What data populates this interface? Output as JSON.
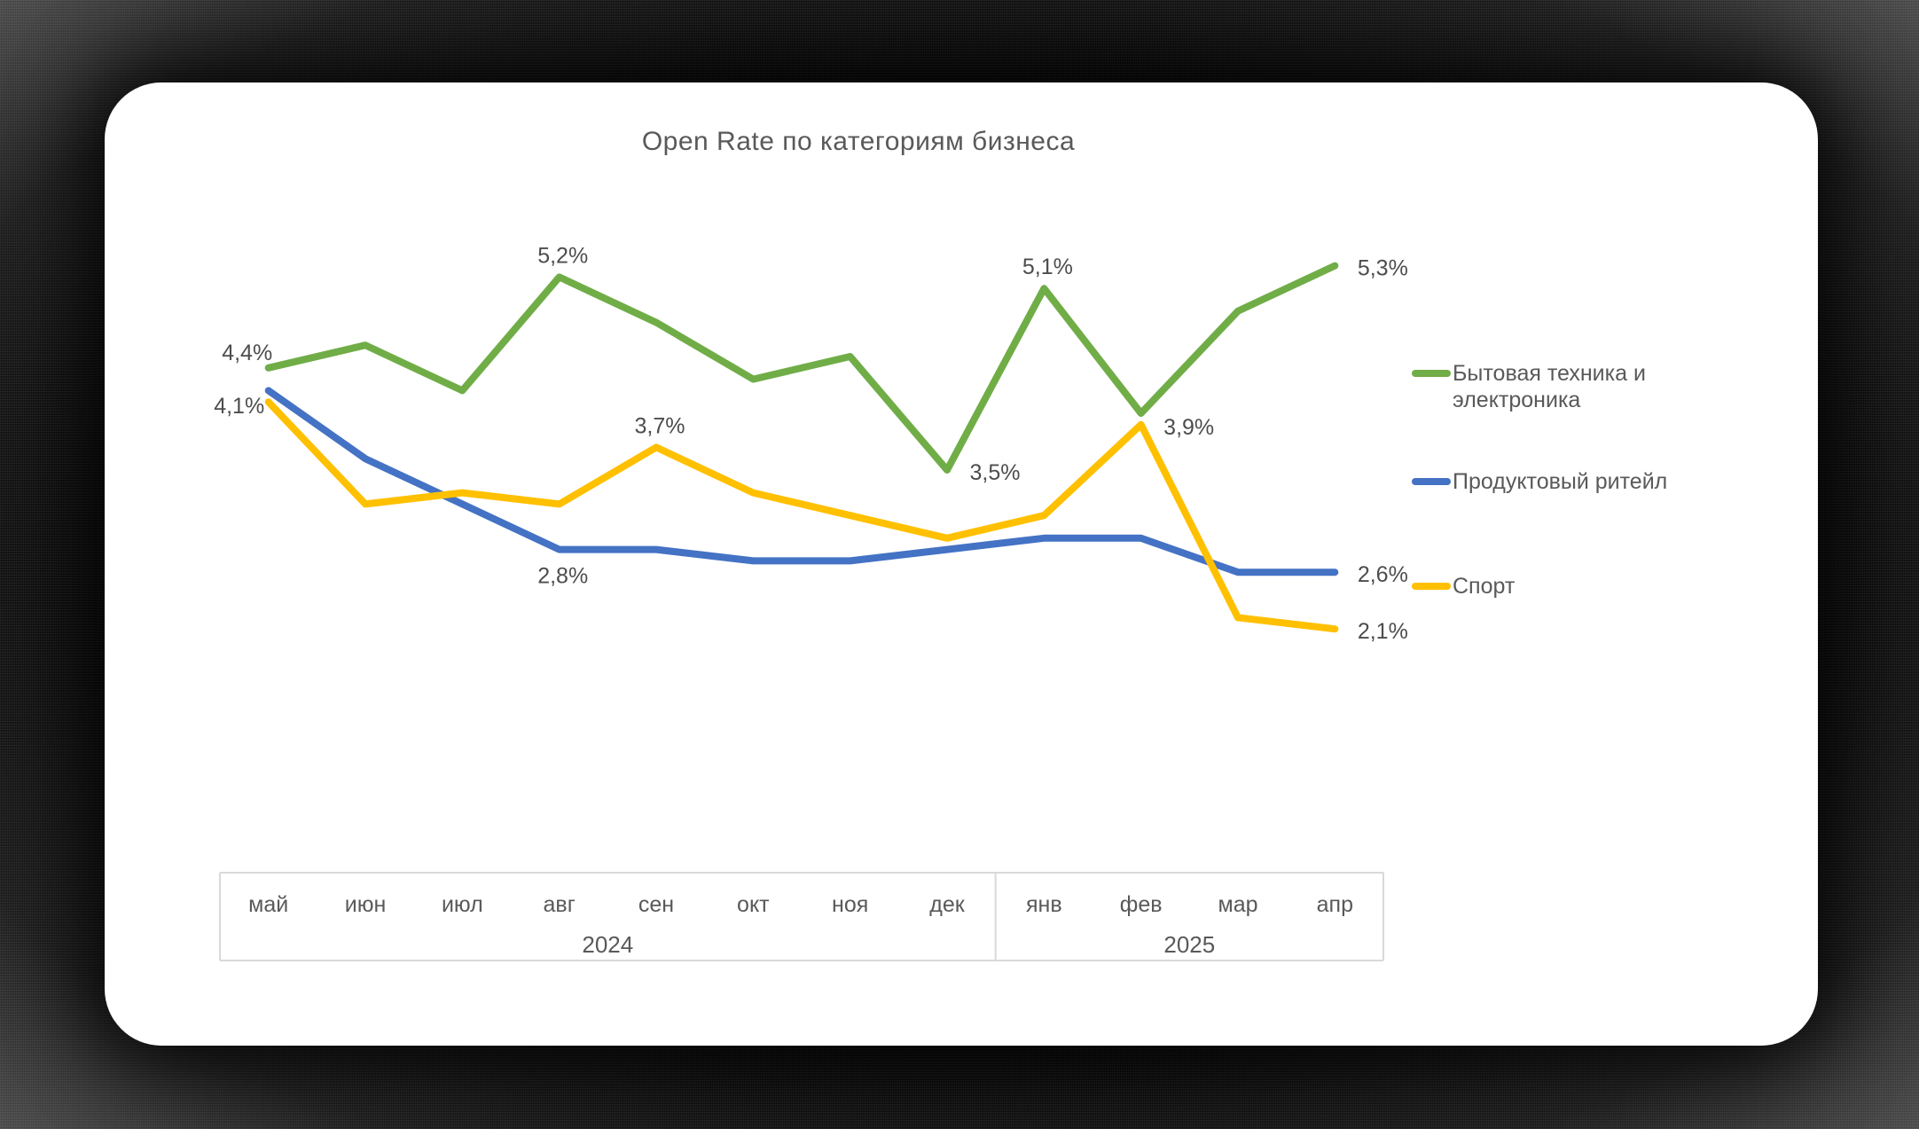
{
  "chart_data": {
    "type": "line",
    "title": "Open Rate по категориям бизнеса",
    "xlabel": "",
    "ylabel": "",
    "value_format": "percent, comma decimal (e.g. 4,4%)",
    "grid": false,
    "legend_position": "right",
    "y_axis_visible": false,
    "ylim": [
      1.8,
      5.8
    ],
    "categories": [
      "май",
      "июн",
      "июл",
      "авг",
      "сен",
      "окт",
      "ноя",
      "дек",
      "янв",
      "фев",
      "мар",
      "апр"
    ],
    "year_groups": [
      {
        "label": "2024",
        "months": 8
      },
      {
        "label": "2025",
        "months": 4
      }
    ],
    "series": [
      {
        "name": "Бытовая техника и электроника",
        "color": "#70AD47",
        "values": [
          4.4,
          4.6,
          4.2,
          5.2,
          4.8,
          4.3,
          4.5,
          3.5,
          5.1,
          4.0,
          4.9,
          5.3
        ],
        "labels": [
          {
            "index": 0,
            "text": "4,4%",
            "placement": "above-left"
          },
          {
            "index": 3,
            "text": "5,2%",
            "placement": "above"
          },
          {
            "index": 7,
            "text": "3,5%",
            "placement": "right"
          },
          {
            "index": 8,
            "text": "5,1%",
            "placement": "above"
          },
          {
            "index": 11,
            "text": "5,3%",
            "placement": "right"
          }
        ]
      },
      {
        "name": "Продуктовый ритейл",
        "color": "#4472C4",
        "values": [
          4.2,
          3.6,
          3.2,
          2.8,
          2.8,
          2.7,
          2.7,
          2.8,
          2.9,
          2.9,
          2.6,
          2.6
        ],
        "labels": [
          {
            "index": 3,
            "text": "2,8%",
            "placement": "below"
          },
          {
            "index": 11,
            "text": "2,6%",
            "placement": "right"
          }
        ]
      },
      {
        "name": "Спорт",
        "color": "#FFC000",
        "values": [
          4.1,
          3.2,
          3.3,
          3.2,
          3.7,
          3.3,
          3.1,
          2.9,
          3.1,
          3.9,
          2.2,
          2.1
        ],
        "labels": [
          {
            "index": 0,
            "text": "4,1%",
            "placement": "left"
          },
          {
            "index": 4,
            "text": "3,7%",
            "placement": "above"
          },
          {
            "index": 9,
            "text": "3,9%",
            "placement": "right"
          },
          {
            "index": 11,
            "text": "2,1%",
            "placement": "right"
          }
        ]
      }
    ],
    "colors": {
      "text": "#595959",
      "data_label": "#4d4d4d",
      "axis_border": "#D9D9D9",
      "card_background": "#FFFFFF"
    }
  }
}
